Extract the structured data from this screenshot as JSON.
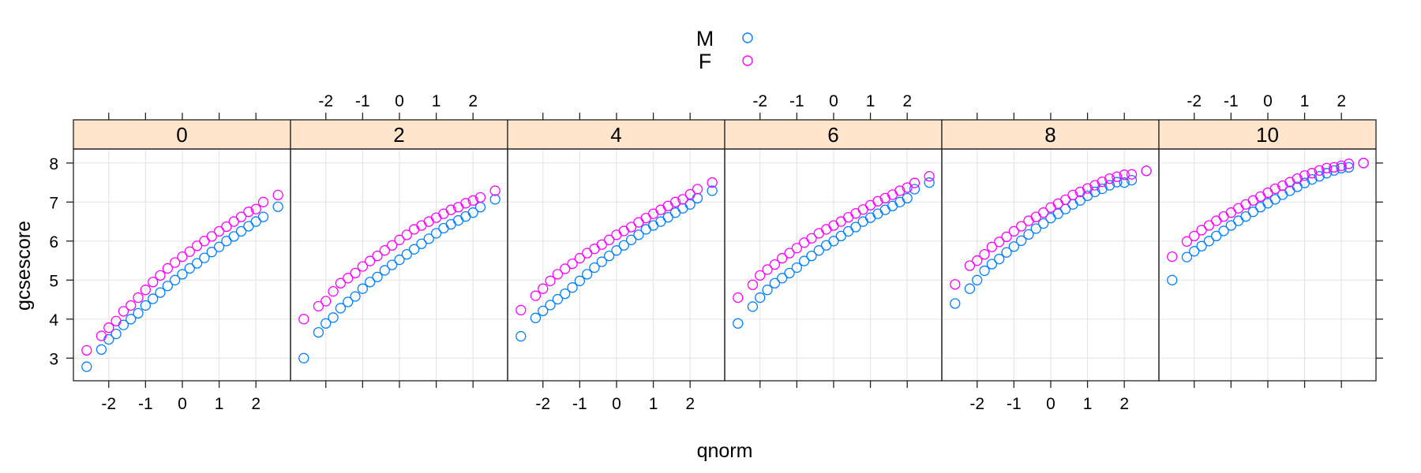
{
  "chart_data": {
    "type": "scatter",
    "subtype": "lattice qq-plot (normal quantiles), one panel per conditioning level",
    "xlabel": "qnorm",
    "ylabel": "gcsescore",
    "xlim": [
      -2.96,
      2.94
    ],
    "ylim": [
      2.42,
      8.36
    ],
    "x_ticks": [
      "-2",
      "-1",
      "0",
      "1",
      "2"
    ],
    "y_ticks": [
      "3",
      "4",
      "5",
      "6",
      "7",
      "8"
    ],
    "grid": true,
    "legend_position": "top",
    "strip_color": "#ffe5cc",
    "legend": [
      {
        "name": "M",
        "color": "#0080ff"
      },
      {
        "name": "F",
        "color": "#ff00ff"
      }
    ],
    "x": [
      -2.6,
      -2.2,
      -2.0,
      -1.8,
      -1.6,
      -1.4,
      -1.2,
      -1.0,
      -0.8,
      -0.6,
      -0.4,
      -0.2,
      0,
      0.2,
      0.4,
      0.6,
      0.8,
      1.0,
      1.2,
      1.4,
      1.6,
      1.8,
      2.0,
      2.2,
      2.6
    ],
    "panels": [
      {
        "label": "0",
        "M": [
          2.78,
          3.22,
          3.48,
          3.62,
          3.85,
          4.0,
          4.15,
          4.35,
          4.52,
          4.68,
          4.85,
          5.0,
          5.15,
          5.3,
          5.43,
          5.57,
          5.72,
          5.85,
          6.0,
          6.12,
          6.25,
          6.38,
          6.5,
          6.62,
          6.88
        ],
        "F": [
          3.2,
          3.57,
          3.78,
          3.95,
          4.2,
          4.35,
          4.55,
          4.75,
          4.95,
          5.12,
          5.3,
          5.45,
          5.6,
          5.73,
          5.88,
          6.0,
          6.12,
          6.25,
          6.37,
          6.5,
          6.62,
          6.75,
          6.82,
          7.0,
          7.18
        ]
      },
      {
        "label": "2",
        "M": [
          3.0,
          3.66,
          3.89,
          4.04,
          4.28,
          4.44,
          4.58,
          4.78,
          4.95,
          5.08,
          5.25,
          5.39,
          5.52,
          5.66,
          5.79,
          5.93,
          6.06,
          6.2,
          6.33,
          6.43,
          6.53,
          6.63,
          6.73,
          6.87,
          7.07
        ],
        "F": [
          4.0,
          4.33,
          4.46,
          4.71,
          4.92,
          5.05,
          5.18,
          5.35,
          5.49,
          5.62,
          5.76,
          5.89,
          6.03,
          6.16,
          6.3,
          6.4,
          6.5,
          6.6,
          6.7,
          6.8,
          6.87,
          6.97,
          7.04,
          7.12,
          7.29
        ]
      },
      {
        "label": "4",
        "M": [
          3.56,
          4.03,
          4.21,
          4.36,
          4.51,
          4.65,
          4.81,
          4.98,
          5.15,
          5.32,
          5.47,
          5.62,
          5.76,
          5.89,
          6.03,
          6.16,
          6.3,
          6.4,
          6.5,
          6.61,
          6.73,
          6.84,
          6.94,
          7.1,
          7.29
        ],
        "F": [
          4.23,
          4.6,
          4.78,
          4.98,
          5.15,
          5.29,
          5.42,
          5.56,
          5.69,
          5.8,
          5.91,
          6.03,
          6.16,
          6.26,
          6.36,
          6.48,
          6.59,
          6.7,
          6.8,
          6.9,
          7.0,
          7.07,
          7.2,
          7.33,
          7.5
        ]
      },
      {
        "label": "6",
        "M": [
          3.89,
          4.32,
          4.55,
          4.75,
          4.92,
          5.05,
          5.18,
          5.32,
          5.49,
          5.62,
          5.76,
          5.89,
          6.0,
          6.13,
          6.25,
          6.36,
          6.5,
          6.6,
          6.7,
          6.8,
          6.9,
          7.0,
          7.1,
          7.33,
          7.5
        ],
        "F": [
          4.55,
          4.88,
          5.12,
          5.27,
          5.4,
          5.56,
          5.69,
          5.82,
          5.96,
          6.07,
          6.2,
          6.3,
          6.4,
          6.5,
          6.61,
          6.71,
          6.81,
          6.92,
          7.02,
          7.1,
          7.19,
          7.29,
          7.37,
          7.49,
          7.66
        ]
      },
      {
        "label": "8",
        "M": [
          4.4,
          4.78,
          5.0,
          5.24,
          5.41,
          5.54,
          5.71,
          5.86,
          6.01,
          6.17,
          6.32,
          6.45,
          6.59,
          6.7,
          6.82,
          6.94,
          7.04,
          7.16,
          7.26,
          7.34,
          7.43,
          7.51,
          7.5,
          7.56,
          7.8
        ],
        "F": [
          4.89,
          5.37,
          5.5,
          5.66,
          5.85,
          5.98,
          6.11,
          6.25,
          6.38,
          6.52,
          6.62,
          6.73,
          6.86,
          6.96,
          7.06,
          7.18,
          7.26,
          7.35,
          7.43,
          7.52,
          7.6,
          7.65,
          7.7,
          7.71,
          7.8
        ]
      },
      {
        "label": "10",
        "M": [
          5.0,
          5.59,
          5.74,
          5.87,
          6.0,
          6.13,
          6.26,
          6.4,
          6.52,
          6.63,
          6.75,
          6.87,
          6.97,
          7.07,
          7.19,
          7.29,
          7.39,
          7.49,
          7.58,
          7.66,
          7.74,
          7.81,
          7.87,
          7.89,
          8.0
        ],
        "F": [
          5.6,
          5.99,
          6.13,
          6.28,
          6.4,
          6.52,
          6.63,
          6.73,
          6.84,
          6.94,
          7.04,
          7.14,
          7.24,
          7.34,
          7.42,
          7.51,
          7.6,
          7.68,
          7.74,
          7.81,
          7.87,
          7.89,
          7.93,
          7.98,
          8.0
        ]
      }
    ]
  }
}
